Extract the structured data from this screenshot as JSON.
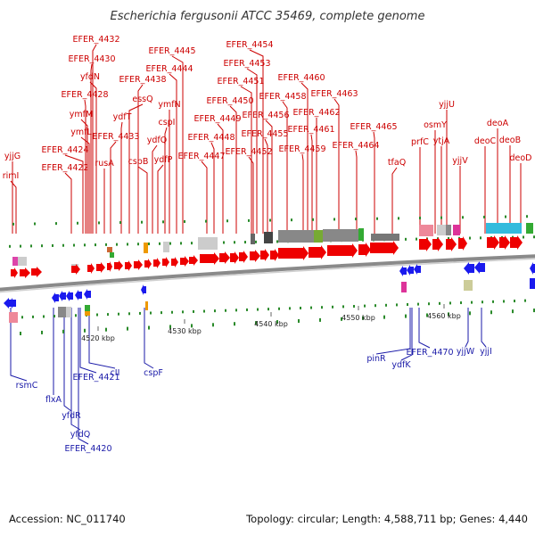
{
  "title": "Escherichia fergusonii ATCC 35469, complete genome",
  "footer": {
    "accession": "Accession: NC_011740",
    "summary": "Topology: circular; Length: 4,588,711 bp; Genes: 4,440"
  },
  "axis_ticks": [
    "4520 kbp",
    "4530 kbp",
    "4540 kbp",
    "4550 kbp",
    "4560 kbp"
  ],
  "colors": {
    "forward_label": "#cc0000",
    "reverse_label": "#1a1aa8",
    "forward_gene": "#ee0000",
    "reverse_gene": "#1a1aee",
    "backbone": "#888888"
  },
  "top_genes": [
    "yjjG",
    "rimI",
    "EFER_4422",
    "EFER_4424",
    "EFER_4428",
    "ymfM",
    "ymfL",
    "EFER_4430",
    "EFER_4432",
    "yfdN",
    "rusA",
    "EFER_4433",
    "ydfT",
    "essQ",
    "EFER_4438",
    "cspB",
    "ydfQ",
    "ydfP",
    "cspI",
    "ymfN",
    "EFER_4444",
    "EFER_4445",
    "EFER_4447",
    "EFER_4448",
    "EFER_4449",
    "EFER_4450",
    "EFER_4451",
    "EFER_4452",
    "EFER_4453",
    "EFER_4454",
    "EFER_4455",
    "EFER_4456",
    "EFER_4458",
    "EFER_4459",
    "EFER_4460",
    "EFER_4461",
    "EFER_4462",
    "EFER_4463",
    "EFER_4464",
    "EFER_4465",
    "tfaQ",
    "prfC",
    "osmY",
    "ytjA",
    "yjjU",
    "yjjV",
    "deoC",
    "deoA",
    "deoB",
    "deoD"
  ],
  "bottom_genes": [
    "rsmC",
    "flxA",
    "yfdR",
    "yfdQ",
    "EFER_4420",
    "EFER_4421",
    "cII",
    "cspF",
    "pinR",
    "ydfK",
    "EFER_4470",
    "yjjW",
    "yjjI"
  ]
}
